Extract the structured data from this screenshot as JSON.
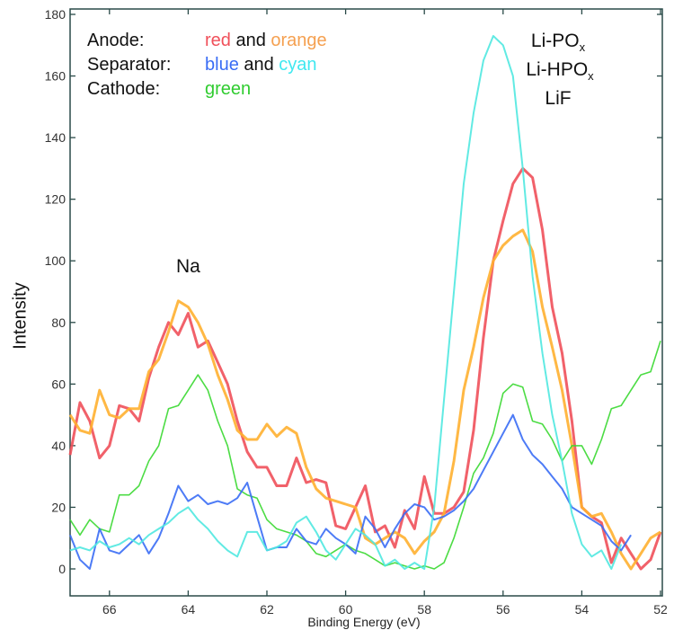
{
  "chart_data": {
    "type": "line",
    "title": "",
    "xlabel": "Binding Energy (eV)",
    "ylabel": "Intensity",
    "xlim": [
      67,
      52
    ],
    "ylim": [
      0,
      180
    ],
    "x_reversed": true,
    "xticks": [
      "66",
      "64",
      "62",
      "60",
      "58",
      "56",
      "54",
      "52"
    ],
    "yticks": [
      "0",
      "20",
      "40",
      "60",
      "80",
      "100",
      "120",
      "140",
      "160",
      "180"
    ],
    "grid": false,
    "legend_text": {
      "rows": [
        {
          "label": "Anode:",
          "parts": [
            {
              "text": "red",
              "color": "#f0505a"
            },
            {
              "text": " and ",
              "color": "#111111"
            },
            {
              "text": "orange",
              "color": "#f5a050"
            }
          ]
        },
        {
          "label": "Separator:",
          "parts": [
            {
              "text": "blue",
              "color": "#3a6df5"
            },
            {
              "text": " and ",
              "color": "#111111"
            },
            {
              "text": "cyan",
              "color": "#40e8f0"
            }
          ]
        },
        {
          "label": "Cathode:",
          "parts": [
            {
              "text": "green",
              "color": "#30cc30"
            }
          ]
        }
      ]
    },
    "annotations": {
      "na": "Na",
      "li_pox": "Li-PO",
      "li_hpox": "Li-HPO",
      "sub_x": "x",
      "lif": "LiF"
    },
    "x_start": 67,
    "x_step": -0.25,
    "series": [
      {
        "name": "Anode (red)",
        "color": "#f0505a",
        "width": 3,
        "values": [
          37,
          54,
          48,
          36,
          40,
          53,
          52,
          48,
          62,
          72,
          80,
          76,
          83,
          72,
          74,
          67,
          60,
          48,
          38,
          33,
          33,
          27,
          27,
          36,
          28,
          29,
          28,
          14,
          13,
          20,
          27,
          12,
          14,
          7,
          19,
          13,
          30,
          18,
          18,
          20,
          25,
          45,
          75,
          100,
          113,
          125,
          130,
          127,
          110,
          85,
          70,
          48,
          20,
          17,
          15,
          2,
          10,
          5,
          0,
          3,
          12
        ]
      },
      {
        "name": "Anode (orange)",
        "color": "#ffb030",
        "width": 3,
        "values": [
          50,
          45,
          44,
          58,
          50,
          49,
          52,
          52,
          64,
          68,
          77,
          87,
          85,
          80,
          73,
          63,
          55,
          45,
          42,
          42,
          47,
          43,
          46,
          44,
          33,
          26,
          23,
          22,
          21,
          20,
          10,
          8,
          10,
          12,
          10,
          5,
          9,
          12,
          18,
          35,
          58,
          72,
          88,
          100,
          105,
          108,
          110,
          103,
          85,
          72,
          58,
          40,
          20,
          17,
          18,
          12,
          5,
          0,
          5,
          10,
          12
        ]
      },
      {
        "name": "Cathode (green)",
        "color": "#38d830",
        "width": 1.6,
        "values": [
          16,
          11,
          16,
          13,
          12,
          24,
          24,
          27,
          35,
          40,
          52,
          53,
          58,
          63,
          58,
          48,
          40,
          26,
          24,
          23,
          16,
          13,
          12,
          11,
          9,
          5,
          4,
          6,
          8,
          6,
          5,
          3,
          1,
          2,
          1,
          0,
          1,
          0,
          2,
          10,
          20,
          31,
          36,
          44,
          57,
          60,
          59,
          48,
          47,
          42,
          35,
          40,
          40,
          34,
          42,
          52,
          53,
          58,
          63,
          64,
          74
        ]
      },
      {
        "name": "Separator (blue)",
        "color": "#3a6df5",
        "width": 2,
        "values": [
          11,
          3,
          0,
          13,
          6,
          5,
          8,
          11,
          5,
          10,
          18,
          27,
          22,
          24,
          21,
          22,
          21,
          23,
          28,
          17,
          6,
          7,
          7,
          13,
          9,
          8,
          13,
          10,
          8,
          5,
          17,
          13,
          7,
          13,
          18,
          21,
          20,
          16,
          17,
          19,
          22,
          26,
          32,
          38,
          44,
          50,
          42,
          37,
          34,
          30,
          26,
          20,
          18,
          16,
          14,
          9,
          6,
          11
        ]
      },
      {
        "name": "Separator (cyan)",
        "color": "#50e8e0",
        "width": 2,
        "values": [
          6,
          7,
          6,
          9,
          7,
          8,
          10,
          8,
          11,
          13,
          15,
          18,
          20,
          16,
          13,
          9,
          6,
          4,
          12,
          12,
          6,
          7,
          9,
          15,
          17,
          12,
          6,
          3,
          8,
          13,
          11,
          8,
          1,
          3,
          0,
          2,
          0,
          20,
          55,
          90,
          125,
          148,
          165,
          173,
          170,
          160,
          130,
          95,
          70,
          50,
          35,
          18,
          8,
          4,
          6,
          0,
          8
        ]
      }
    ]
  }
}
